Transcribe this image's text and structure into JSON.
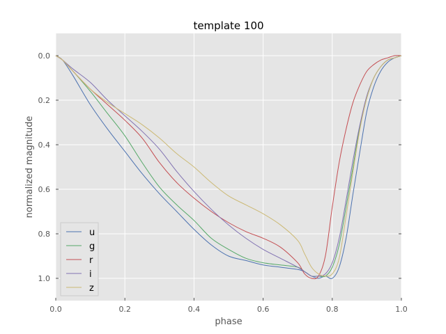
{
  "chart_data": {
    "type": "line",
    "title": "template 100",
    "xlabel": "phase",
    "ylabel": "normalized magnitude",
    "xlim": [
      0.0,
      1.0
    ],
    "ylim": [
      1.1,
      -0.1
    ],
    "y_inverted": true,
    "grid": true,
    "legend_position": "lower-left",
    "xticks": [
      "0.0",
      "0.2",
      "0.4",
      "0.6",
      "0.8",
      "1.0"
    ],
    "yticks": [
      "0.0",
      "0.2",
      "0.4",
      "0.6",
      "0.8",
      "1.0"
    ],
    "x": [
      0.0,
      0.02,
      0.05,
      0.1,
      0.15,
      0.2,
      0.25,
      0.3,
      0.35,
      0.4,
      0.45,
      0.5,
      0.55,
      0.6,
      0.65,
      0.7,
      0.72,
      0.74,
      0.76,
      0.78,
      0.8,
      0.82,
      0.84,
      0.86,
      0.88,
      0.9,
      0.92,
      0.94,
      0.96,
      0.98,
      1.0
    ],
    "series": [
      {
        "name": "u",
        "color": "#4c72b0",
        "values": [
          0.0,
          0.02,
          0.09,
          0.22,
          0.33,
          0.43,
          0.53,
          0.62,
          0.7,
          0.78,
          0.85,
          0.9,
          0.92,
          0.94,
          0.95,
          0.96,
          0.97,
          0.99,
          1.0,
          0.99,
          1.0,
          0.95,
          0.82,
          0.62,
          0.43,
          0.25,
          0.14,
          0.07,
          0.03,
          0.01,
          0.0
        ]
      },
      {
        "name": "g",
        "color": "#55a868",
        "values": [
          0.0,
          0.02,
          0.07,
          0.16,
          0.26,
          0.36,
          0.48,
          0.59,
          0.67,
          0.74,
          0.82,
          0.87,
          0.91,
          0.93,
          0.94,
          0.95,
          0.97,
          0.99,
          0.99,
          0.99,
          0.95,
          0.85,
          0.68,
          0.5,
          0.32,
          0.19,
          0.1,
          0.05,
          0.02,
          0.01,
          0.0
        ]
      },
      {
        "name": "r",
        "color": "#c44e52",
        "values": [
          0.0,
          0.02,
          0.07,
          0.15,
          0.22,
          0.29,
          0.37,
          0.48,
          0.57,
          0.64,
          0.7,
          0.75,
          0.79,
          0.82,
          0.86,
          0.93,
          0.98,
          1.0,
          0.99,
          0.9,
          0.68,
          0.48,
          0.33,
          0.21,
          0.13,
          0.07,
          0.04,
          0.02,
          0.01,
          0.0,
          0.0
        ]
      },
      {
        "name": "i",
        "color": "#8172b2",
        "values": [
          0.0,
          0.02,
          0.06,
          0.12,
          0.2,
          0.27,
          0.34,
          0.42,
          0.52,
          0.61,
          0.69,
          0.76,
          0.82,
          0.87,
          0.91,
          0.95,
          0.97,
          0.99,
          0.99,
          0.98,
          0.93,
          0.82,
          0.65,
          0.47,
          0.31,
          0.18,
          0.1,
          0.05,
          0.02,
          0.01,
          0.0
        ]
      },
      {
        "name": "z",
        "color": "#ccb974",
        "values": [
          0.0,
          0.02,
          0.07,
          0.15,
          0.21,
          0.26,
          0.31,
          0.37,
          0.44,
          0.5,
          0.57,
          0.63,
          0.67,
          0.71,
          0.76,
          0.83,
          0.89,
          0.95,
          0.98,
          0.99,
          0.98,
          0.91,
          0.72,
          0.52,
          0.33,
          0.19,
          0.1,
          0.05,
          0.02,
          0.01,
          0.0
        ]
      }
    ]
  }
}
